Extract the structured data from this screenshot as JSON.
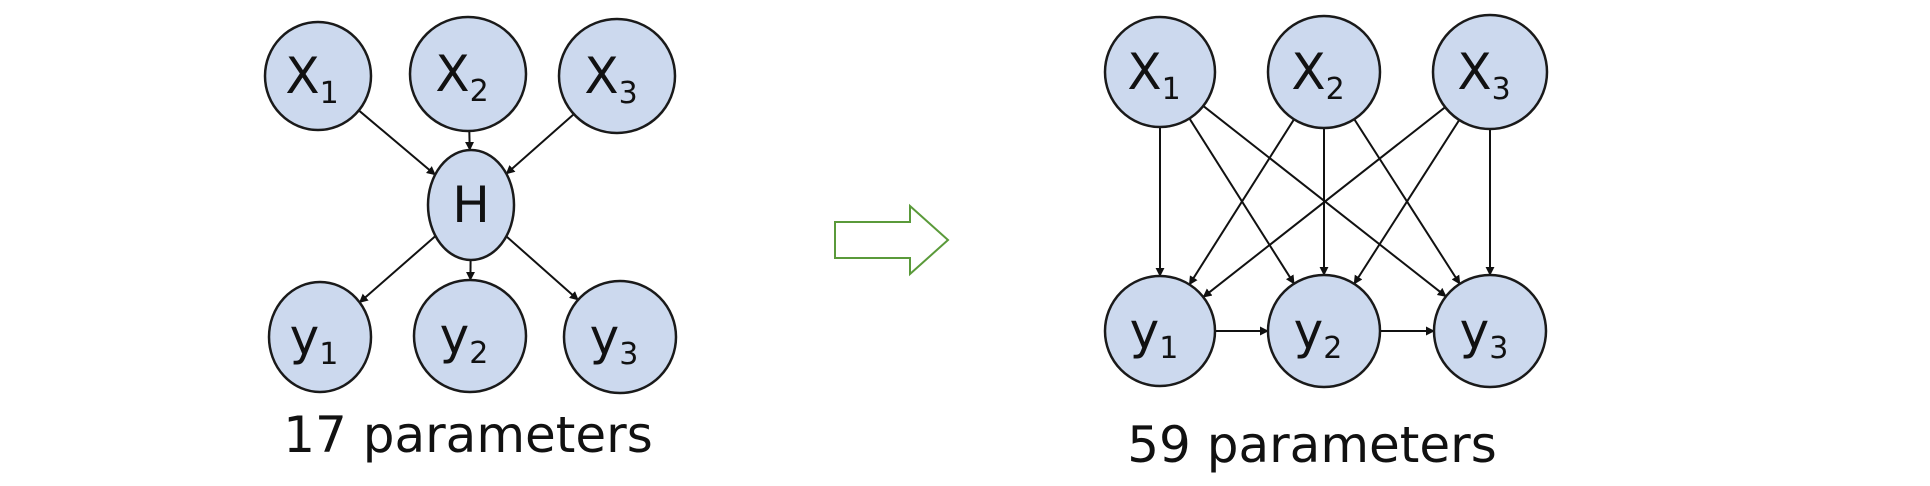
{
  "left_model": {
    "nodes": [
      {
        "id": "x1",
        "base": "X",
        "sub": "1"
      },
      {
        "id": "x2",
        "base": "X",
        "sub": "2"
      },
      {
        "id": "x3",
        "base": "X",
        "sub": "3"
      },
      {
        "id": "h",
        "base": "H",
        "sub": ""
      },
      {
        "id": "y1",
        "base": "y",
        "sub": "1"
      },
      {
        "id": "y2",
        "base": "y",
        "sub": "2"
      },
      {
        "id": "y3",
        "base": "y",
        "sub": "3"
      }
    ],
    "edges": [
      [
        "x1",
        "h"
      ],
      [
        "x2",
        "h"
      ],
      [
        "x3",
        "h"
      ],
      [
        "h",
        "y1"
      ],
      [
        "h",
        "y2"
      ],
      [
        "h",
        "y3"
      ]
    ],
    "caption": "17 parameters"
  },
  "transform_arrow": "hollow-right-arrow",
  "right_model": {
    "nodes": [
      {
        "id": "x1",
        "base": "X",
        "sub": "1"
      },
      {
        "id": "x2",
        "base": "X",
        "sub": "2"
      },
      {
        "id": "x3",
        "base": "X",
        "sub": "3"
      },
      {
        "id": "y1",
        "base": "y",
        "sub": "1"
      },
      {
        "id": "y2",
        "base": "y",
        "sub": "2"
      },
      {
        "id": "y3",
        "base": "y",
        "sub": "3"
      }
    ],
    "edges": [
      [
        "x1",
        "y1"
      ],
      [
        "x1",
        "y2"
      ],
      [
        "x1",
        "y3"
      ],
      [
        "x2",
        "y1"
      ],
      [
        "x2",
        "y2"
      ],
      [
        "x2",
        "y3"
      ],
      [
        "x3",
        "y1"
      ],
      [
        "x3",
        "y2"
      ],
      [
        "x3",
        "y3"
      ],
      [
        "y1",
        "y2"
      ],
      [
        "y2",
        "y3"
      ]
    ],
    "caption": "59 parameters"
  },
  "colors": {
    "node_fill": "#ccd9ee",
    "node_stroke": "#1a1a1a",
    "edge": "#111111",
    "arrow_outline": "#5a9a3a"
  }
}
